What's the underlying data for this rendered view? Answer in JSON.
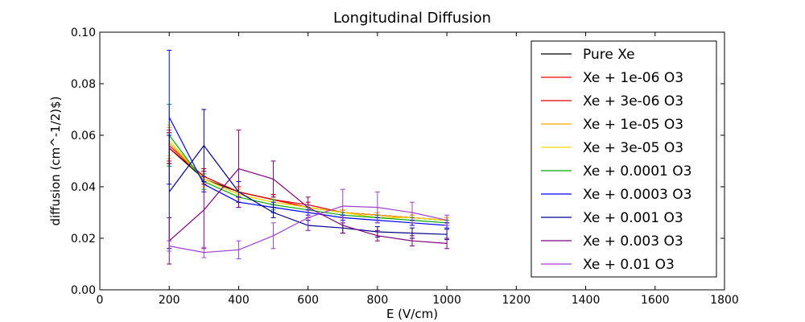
{
  "chart_data": {
    "type": "line",
    "title": "Longitudinal Diffusion",
    "xlabel": "E (V/cm)",
    "ylabel": "diffusion (cm^-1/2)$)",
    "xlim": [
      0,
      1800
    ],
    "ylim": [
      0.0,
      0.1
    ],
    "x_ticks": [
      "0",
      "200",
      "400",
      "600",
      "800",
      "1000",
      "1200",
      "1400",
      "1600",
      "1800"
    ],
    "y_ticks": [
      "0.00",
      "0.02",
      "0.04",
      "0.06",
      "0.08",
      "0.10"
    ],
    "x": [
      200,
      300,
      400,
      500,
      600,
      700,
      800,
      900,
      1000
    ],
    "legend_position": "top-right",
    "grid": false,
    "series": [
      {
        "name": "Pure Xe",
        "color": "#000000",
        "values": [
          0.055,
          0.043,
          0.038,
          0.035,
          0.032,
          0.03,
          0.029,
          0.028,
          0.027
        ],
        "errors": [
          0.006,
          0.003,
          0.002,
          0.002,
          0.001,
          0.001,
          0.001,
          0.001,
          0.001
        ]
      },
      {
        "name": "Xe + 1e-06 O3",
        "color": "#ff0000",
        "values": [
          0.056,
          0.044,
          0.038,
          0.035,
          0.032,
          0.03,
          0.029,
          0.028,
          0.027
        ],
        "errors": [
          0.006,
          0.003,
          0.002,
          0.002,
          0.001,
          0.001,
          0.001,
          0.001,
          0.001
        ]
      },
      {
        "name": "Xe + 3e-06 O3",
        "color": "#dd0000",
        "values": [
          0.055,
          0.044,
          0.038,
          0.035,
          0.033,
          0.03,
          0.029,
          0.028,
          0.027
        ],
        "errors": [
          0.006,
          0.003,
          0.002,
          0.002,
          0.001,
          0.001,
          0.001,
          0.001,
          0.001
        ]
      },
      {
        "name": "Xe + 1e-05 O3",
        "color": "#ffa500",
        "values": [
          0.057,
          0.043,
          0.037,
          0.034,
          0.032,
          0.03,
          0.029,
          0.028,
          0.027
        ],
        "errors": [
          0.006,
          0.003,
          0.002,
          0.002,
          0.001,
          0.001,
          0.001,
          0.001,
          0.001
        ]
      },
      {
        "name": "Xe + 3e-05 O3",
        "color": "#ffd700",
        "values": [
          0.058,
          0.043,
          0.037,
          0.034,
          0.032,
          0.03,
          0.028,
          0.028,
          0.027
        ],
        "errors": [
          0.006,
          0.003,
          0.002,
          0.002,
          0.001,
          0.001,
          0.001,
          0.001,
          0.001
        ]
      },
      {
        "name": "Xe + 0.0001 O3",
        "color": "#00aa00",
        "values": [
          0.06,
          0.042,
          0.036,
          0.033,
          0.031,
          0.029,
          0.028,
          0.027,
          0.026
        ],
        "errors": [
          0.012,
          0.003,
          0.002,
          0.002,
          0.001,
          0.001,
          0.001,
          0.001,
          0.001
        ]
      },
      {
        "name": "Xe + 0.0003 O3",
        "color": "#0000ff",
        "values": [
          0.067,
          0.041,
          0.034,
          0.032,
          0.03,
          0.028,
          0.027,
          0.026,
          0.025
        ],
        "errors": [
          0.026,
          0.003,
          0.002,
          0.002,
          0.001,
          0.001,
          0.001,
          0.001,
          0.001
        ]
      },
      {
        "name": "Xe + 0.001 O3",
        "color": "#00008b",
        "values": [
          0.038,
          0.056,
          0.038,
          0.03,
          0.025,
          0.024,
          0.0225,
          0.022,
          0.0215
        ],
        "errors": [
          0.022,
          0.014,
          0.004,
          0.002,
          0.002,
          0.002,
          0.002,
          0.002,
          0.002
        ]
      },
      {
        "name": "Xe + 0.003 O3",
        "color": "#800080",
        "values": [
          0.019,
          0.031,
          0.047,
          0.043,
          0.032,
          0.025,
          0.021,
          0.019,
          0.018
        ],
        "errors": [
          0.009,
          0.015,
          0.015,
          0.007,
          0.004,
          0.003,
          0.002,
          0.002,
          0.002
        ]
      },
      {
        "name": "Xe + 0.01 O3",
        "color": "#a040d0",
        "values": [
          0.017,
          0.0145,
          0.0155,
          0.021,
          0.028,
          0.0325,
          0.032,
          0.03,
          0.027
        ],
        "errors": [
          0.002,
          0.002,
          0.0035,
          0.005,
          0.005,
          0.0065,
          0.006,
          0.004,
          0.002
        ]
      }
    ]
  }
}
